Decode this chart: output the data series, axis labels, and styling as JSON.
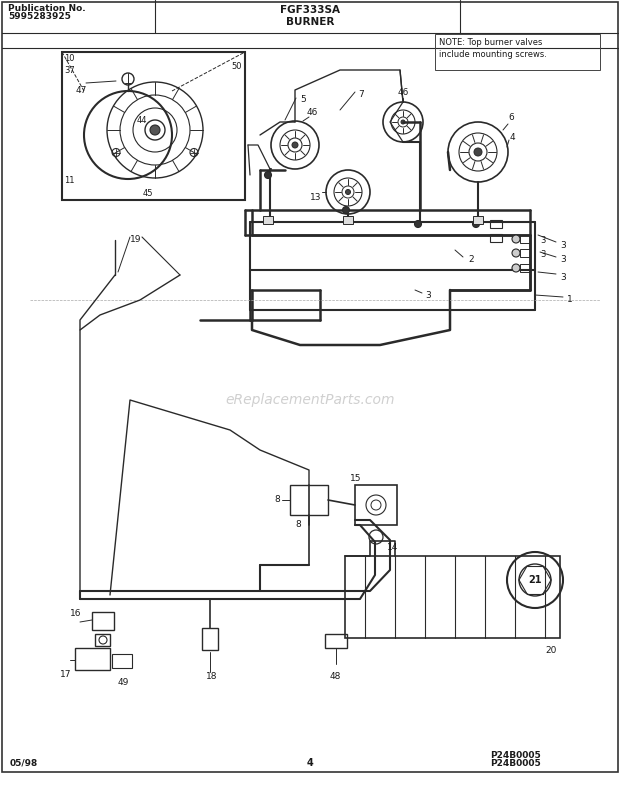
{
  "title": "FGF333SA",
  "subtitle": "BURNER",
  "pub_no_label": "Publication No.",
  "pub_no_value": "5995283925",
  "date_label": "05/98",
  "page_number": "4",
  "part_code": "P24B0005",
  "watermark": "eReplacementParts.com",
  "note_line1": "NOTE: Top burner valves",
  "note_line2": "include mounting screws.",
  "bg_color": "#ffffff",
  "line_color": "#2a2a2a",
  "fig_width": 6.2,
  "fig_height": 7.9,
  "dpi": 100
}
